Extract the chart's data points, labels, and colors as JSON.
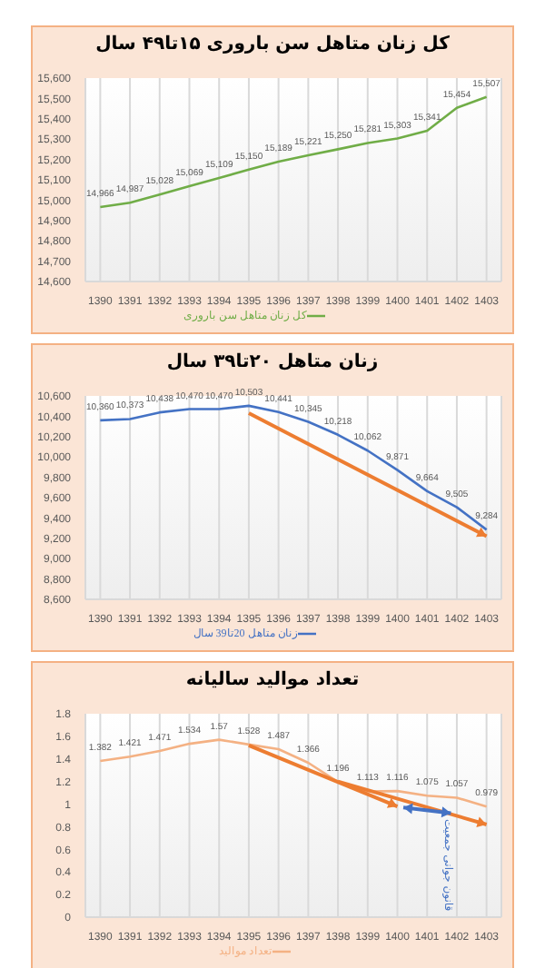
{
  "chart_data": [
    {
      "type": "line",
      "title": "کل زنان متاهل سن باروری ۱۵تا۴۹ سال",
      "categories": [
        "1390",
        "1391",
        "1392",
        "1393",
        "1394",
        "1395",
        "1396",
        "1397",
        "1398",
        "1399",
        "1400",
        "1401",
        "1402",
        "1403"
      ],
      "series": [
        {
          "name": "کل زنان متاهل سن باروری",
          "color": "#70ad47",
          "values": [
            14966,
            14987,
            15028,
            15069,
            15109,
            15150,
            15189,
            15221,
            15250,
            15281,
            15303,
            15341,
            15454,
            15507
          ],
          "value_labels": [
            "14,966",
            "14,987",
            "15,028",
            "15,069",
            "15,109",
            "15,150",
            "15,189",
            "15,221",
            "15,250",
            "15,281",
            "15,303",
            "15,341",
            "15,454",
            "15,507"
          ]
        }
      ],
      "ylim": [
        14600,
        15600
      ],
      "yticks": [
        {
          "value": 14600,
          "label": "14,600"
        },
        {
          "value": 14700,
          "label": "14,700"
        },
        {
          "value": 14800,
          "label": "14,800"
        },
        {
          "value": 14900,
          "label": "14,900"
        },
        {
          "value": 15000,
          "label": "15,000"
        },
        {
          "value": 15100,
          "label": "15,100"
        },
        {
          "value": 15200,
          "label": "15,200"
        },
        {
          "value": 15300,
          "label": "15,300"
        },
        {
          "value": 15400,
          "label": "15,400"
        },
        {
          "value": 15500,
          "label": "15,500"
        },
        {
          "value": 15600,
          "label": "15,600"
        }
      ],
      "grid": "x",
      "legend": "bottom",
      "marker": "none"
    },
    {
      "type": "line",
      "title": "زنان متاهل ۲۰تا۳۹ سال",
      "categories": [
        "1390",
        "1391",
        "1392",
        "1393",
        "1394",
        "1395",
        "1396",
        "1397",
        "1398",
        "1399",
        "1400",
        "1401",
        "1402",
        "1403"
      ],
      "series": [
        {
          "name": "زنان متاهل 20تا39 سال",
          "color": "#4472c4",
          "values": [
            10360,
            10373,
            10438,
            10470,
            10470,
            10503,
            10441,
            10345,
            10218,
            10062,
            9871,
            9664,
            9505,
            9284
          ],
          "value_labels": [
            "10,360",
            "10,373",
            "10,438",
            "10,470",
            "10,470",
            "10,503",
            "10,441",
            "10,345",
            "10,218",
            "10,062",
            "9,871",
            "9,664",
            "9,505",
            "9,284"
          ]
        }
      ],
      "ylim": [
        8600,
        10600
      ],
      "yticks": [
        {
          "value": 8600,
          "label": "8,600"
        },
        {
          "value": 8800,
          "label": "8,800"
        },
        {
          "value": 9000,
          "label": "9,000"
        },
        {
          "value": 9200,
          "label": "9,200"
        },
        {
          "value": 9400,
          "label": "9,400"
        },
        {
          "value": 9600,
          "label": "9,600"
        },
        {
          "value": 9800,
          "label": "9,800"
        },
        {
          "value": 10000,
          "label": "10,000"
        },
        {
          "value": 10200,
          "label": "10,200"
        },
        {
          "value": 10400,
          "label": "10,400"
        },
        {
          "value": 10600,
          "label": "10,600"
        }
      ],
      "grid": "x",
      "legend": "bottom",
      "marker": "none"
    },
    {
      "type": "line",
      "title": "تعداد موالید سالیانه",
      "categories": [
        "1390",
        "1391",
        "1392",
        "1393",
        "1394",
        "1395",
        "1396",
        "1397",
        "1398",
        "1399",
        "1400",
        "1401",
        "1402",
        "1403"
      ],
      "series": [
        {
          "name": "تعداد موالید",
          "color": "#f4b183",
          "values": [
            1.382,
            1.421,
            1.471,
            1.534,
            1.57,
            1.528,
            1.487,
            1.366,
            1.196,
            1.113,
            1.116,
            1.075,
            1.057,
            0.979
          ],
          "value_labels": [
            "1.382",
            "1.421",
            "1.471",
            "1.534",
            "1.57",
            "1.528",
            "1.487",
            "1.366",
            "1.196",
            "1.113",
            "1.116",
            "1.075",
            "1.057",
            "0.979"
          ]
        }
      ],
      "ylim": [
        0,
        1.8
      ],
      "yticks": [
        0,
        0.2,
        0.4,
        0.6,
        0.8,
        1,
        1.2,
        1.4,
        1.6,
        1.8
      ],
      "annotations": [
        "قانون جوانی جمعیت"
      ],
      "grid": "x",
      "legend": "bottom",
      "marker": "none"
    }
  ]
}
